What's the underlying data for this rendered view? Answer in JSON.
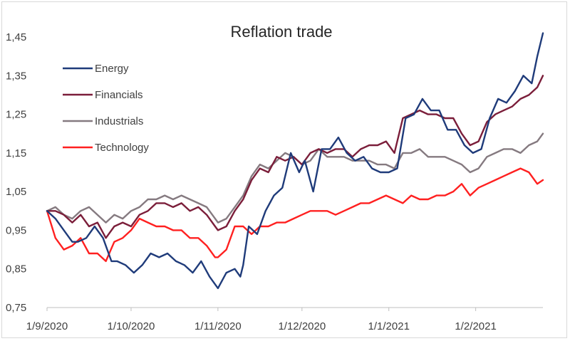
{
  "chart_data": {
    "type": "line",
    "title": "Reflation trade",
    "xlabel": "",
    "ylabel": "",
    "ylim": [
      0.75,
      1.45
    ],
    "yticks": [
      "0,75",
      "0,85",
      "0,95",
      "1,05",
      "1,15",
      "1,25",
      "1,35",
      "1,45"
    ],
    "ytick_values": [
      0.75,
      0.85,
      0.95,
      1.05,
      1.15,
      1.25,
      1.35,
      1.45
    ],
    "xticks": [
      "1/9/2020",
      "1/10/2020",
      "1/11/2020",
      "1/12/2020",
      "1/1/2021",
      "1/2/2021"
    ],
    "xtick_days": [
      0,
      30,
      61,
      91,
      122,
      153
    ],
    "xlim_days": [
      0,
      177
    ],
    "grid": false,
    "legend_position": "top-left",
    "series": [
      {
        "name": "Energy",
        "color": "#1f3b7a",
        "x": [
          0,
          3,
          6,
          9,
          11,
          14,
          17,
          20,
          23,
          25,
          28,
          31,
          34,
          37,
          40,
          43,
          46,
          49,
          52,
          55,
          58,
          61,
          64,
          67,
          69,
          70,
          72,
          75,
          78,
          81,
          84,
          87,
          90,
          92,
          95,
          98,
          101,
          104,
          107,
          110,
          113,
          116,
          119,
          122,
          125,
          128,
          131,
          134,
          137,
          140,
          143,
          146,
          149,
          152,
          155,
          158,
          161,
          164,
          167,
          170,
          173,
          175,
          177
        ],
        "y": [
          1.0,
          0.98,
          0.95,
          0.92,
          0.92,
          0.93,
          0.96,
          0.93,
          0.87,
          0.87,
          0.86,
          0.84,
          0.86,
          0.89,
          0.88,
          0.89,
          0.87,
          0.86,
          0.84,
          0.87,
          0.83,
          0.8,
          0.84,
          0.85,
          0.83,
          0.86,
          0.96,
          0.94,
          1.0,
          1.04,
          1.06,
          1.15,
          1.1,
          1.13,
          1.05,
          1.16,
          1.16,
          1.19,
          1.15,
          1.13,
          1.14,
          1.11,
          1.1,
          1.1,
          1.11,
          1.24,
          1.25,
          1.29,
          1.26,
          1.26,
          1.21,
          1.21,
          1.17,
          1.15,
          1.16,
          1.24,
          1.29,
          1.28,
          1.31,
          1.35,
          1.33,
          1.4,
          1.46
        ]
      },
      {
        "name": "Financials",
        "color": "#7b1e3a",
        "x": [
          0,
          3,
          6,
          9,
          12,
          15,
          18,
          21,
          24,
          27,
          30,
          33,
          36,
          39,
          42,
          45,
          48,
          51,
          54,
          57,
          60,
          61,
          64,
          67,
          70,
          73,
          76,
          79,
          82,
          85,
          88,
          91,
          94,
          97,
          100,
          103,
          106,
          109,
          112,
          115,
          118,
          121,
          124,
          127,
          130,
          133,
          136,
          139,
          142,
          145,
          148,
          151,
          154,
          157,
          160,
          163,
          166,
          169,
          172,
          175,
          177
        ],
        "y": [
          1.0,
          1.0,
          0.99,
          0.97,
          0.99,
          0.96,
          0.97,
          0.93,
          0.96,
          0.97,
          0.96,
          0.99,
          1.0,
          1.02,
          1.02,
          1.01,
          1.02,
          1.0,
          1.01,
          0.99,
          0.96,
          0.95,
          0.96,
          1.0,
          1.03,
          1.08,
          1.11,
          1.1,
          1.14,
          1.13,
          1.14,
          1.12,
          1.15,
          1.16,
          1.15,
          1.16,
          1.16,
          1.14,
          1.16,
          1.17,
          1.17,
          1.18,
          1.15,
          1.24,
          1.25,
          1.26,
          1.25,
          1.25,
          1.24,
          1.24,
          1.2,
          1.17,
          1.18,
          1.23,
          1.25,
          1.26,
          1.27,
          1.29,
          1.3,
          1.32,
          1.35
        ]
      },
      {
        "name": "Industrials",
        "color": "#857a80",
        "x": [
          0,
          3,
          6,
          9,
          12,
          15,
          18,
          21,
          24,
          27,
          30,
          33,
          36,
          39,
          42,
          45,
          48,
          51,
          54,
          57,
          60,
          61,
          64,
          67,
          70,
          73,
          76,
          79,
          82,
          85,
          88,
          91,
          94,
          97,
          100,
          103,
          106,
          109,
          112,
          115,
          118,
          121,
          124,
          127,
          130,
          133,
          136,
          139,
          142,
          145,
          148,
          151,
          154,
          157,
          160,
          163,
          166,
          169,
          172,
          175,
          177
        ],
        "y": [
          1.0,
          1.01,
          0.99,
          0.98,
          1.0,
          1.01,
          0.99,
          0.97,
          0.99,
          0.98,
          1.0,
          1.01,
          1.03,
          1.03,
          1.04,
          1.03,
          1.04,
          1.03,
          1.02,
          1.01,
          0.98,
          0.97,
          0.98,
          1.01,
          1.04,
          1.09,
          1.12,
          1.11,
          1.13,
          1.15,
          1.14,
          1.12,
          1.13,
          1.16,
          1.14,
          1.14,
          1.14,
          1.13,
          1.13,
          1.13,
          1.12,
          1.12,
          1.11,
          1.15,
          1.15,
          1.16,
          1.14,
          1.14,
          1.14,
          1.13,
          1.12,
          1.1,
          1.11,
          1.14,
          1.15,
          1.16,
          1.16,
          1.15,
          1.17,
          1.18,
          1.2
        ]
      },
      {
        "name": "Technology",
        "color": "#ff2020",
        "x": [
          0,
          3,
          6,
          9,
          12,
          15,
          18,
          21,
          24,
          27,
          30,
          33,
          36,
          39,
          42,
          45,
          48,
          51,
          54,
          57,
          60,
          61,
          64,
          67,
          70,
          73,
          76,
          79,
          82,
          85,
          88,
          91,
          94,
          97,
          100,
          103,
          106,
          109,
          112,
          115,
          118,
          121,
          124,
          127,
          130,
          133,
          136,
          139,
          142,
          145,
          148,
          151,
          154,
          157,
          160,
          163,
          166,
          169,
          172,
          175,
          177
        ],
        "y": [
          1.0,
          0.93,
          0.9,
          0.91,
          0.93,
          0.89,
          0.89,
          0.87,
          0.92,
          0.93,
          0.95,
          0.98,
          0.97,
          0.96,
          0.96,
          0.95,
          0.95,
          0.93,
          0.93,
          0.91,
          0.88,
          0.88,
          0.9,
          0.96,
          0.96,
          0.94,
          0.96,
          0.96,
          0.97,
          0.97,
          0.98,
          0.99,
          1.0,
          1.0,
          1.0,
          0.99,
          1.0,
          1.01,
          1.02,
          1.02,
          1.03,
          1.04,
          1.03,
          1.02,
          1.04,
          1.03,
          1.03,
          1.04,
          1.04,
          1.05,
          1.07,
          1.04,
          1.06,
          1.07,
          1.08,
          1.09,
          1.1,
          1.11,
          1.1,
          1.07,
          1.08
        ]
      }
    ]
  }
}
